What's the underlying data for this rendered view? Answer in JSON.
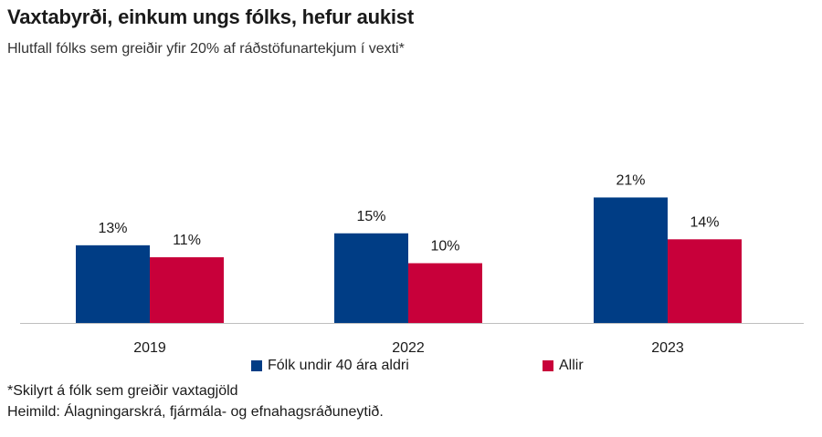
{
  "chart_data": {
    "type": "bar",
    "title": "Vaxtabyrði, einkum ungs fólks, hefur aukist",
    "subtitle": "Hlutfall fólks sem greiðir yfir 20% af ráðstöfunartekjum í vexti*",
    "categories": [
      "2019",
      "2022",
      "2023"
    ],
    "series": [
      {
        "name": "Fólk undir 40 ára aldri",
        "values": [
          13,
          15,
          21
        ],
        "labels": [
          "13%",
          "15%",
          "21%"
        ],
        "color": "#003d85"
      },
      {
        "name": "Allir",
        "values": [
          11,
          10,
          14
        ],
        "labels": [
          "11%",
          "10%",
          "14%"
        ],
        "color": "#c8003a"
      }
    ],
    "ylim": [
      0,
      25
    ],
    "grid": false,
    "legend_position": "bottom"
  },
  "footnote": "*Skilyrt á fólk sem greiðir vaxtagjöld",
  "source": "Heimild: Álagningarskrá, fjármála- og efnahagsráðuneytið."
}
